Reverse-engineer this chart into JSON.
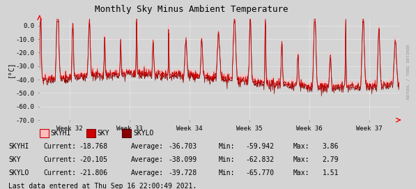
{
  "title": "Monthly Sky Minus Ambient Temperature",
  "ylabel": "[°C]",
  "x_weeks": [
    "Week 32",
    "Week 33",
    "Week 34",
    "Week 35",
    "Week 36",
    "Week 37"
  ],
  "ylim": [
    -70,
    5
  ],
  "yticks": [
    0.0,
    -10.0,
    -20.0,
    -30.0,
    -40.0,
    -50.0,
    -60.0,
    -70.0
  ],
  "yticklabels": [
    "0.0",
    "-10.0",
    "-20.0",
    "-30.0",
    "-40.0",
    "-50.0",
    "-60.0",
    "-70.0"
  ],
  "bg_color": "#d4d4d4",
  "plot_bg_color": "#d4d4d4",
  "grid_color": "#ffffff",
  "color_skyhi": "#ffbbbb",
  "color_sky": "#cc0000",
  "color_skylo": "#880000",
  "stats": [
    {
      "name": "SKYHI",
      "current": "-18.768",
      "average": "-36.703",
      "min": "-59.942",
      "max": "3.86"
    },
    {
      "name": "SKY",
      "current": "-20.105",
      "average": "-38.099",
      "min": "-62.832",
      "max": "2.79"
    },
    {
      "name": "SKYLO",
      "current": "-21.806",
      "average": "-39.728",
      "min": "-65.770",
      "max": "1.51"
    }
  ],
  "footer": "Last data entered at Thu Sep 16 22:00:49 2021.",
  "watermark": "RDTOOL / TOBI OETIKER",
  "n_points": 1008,
  "seed": 42
}
